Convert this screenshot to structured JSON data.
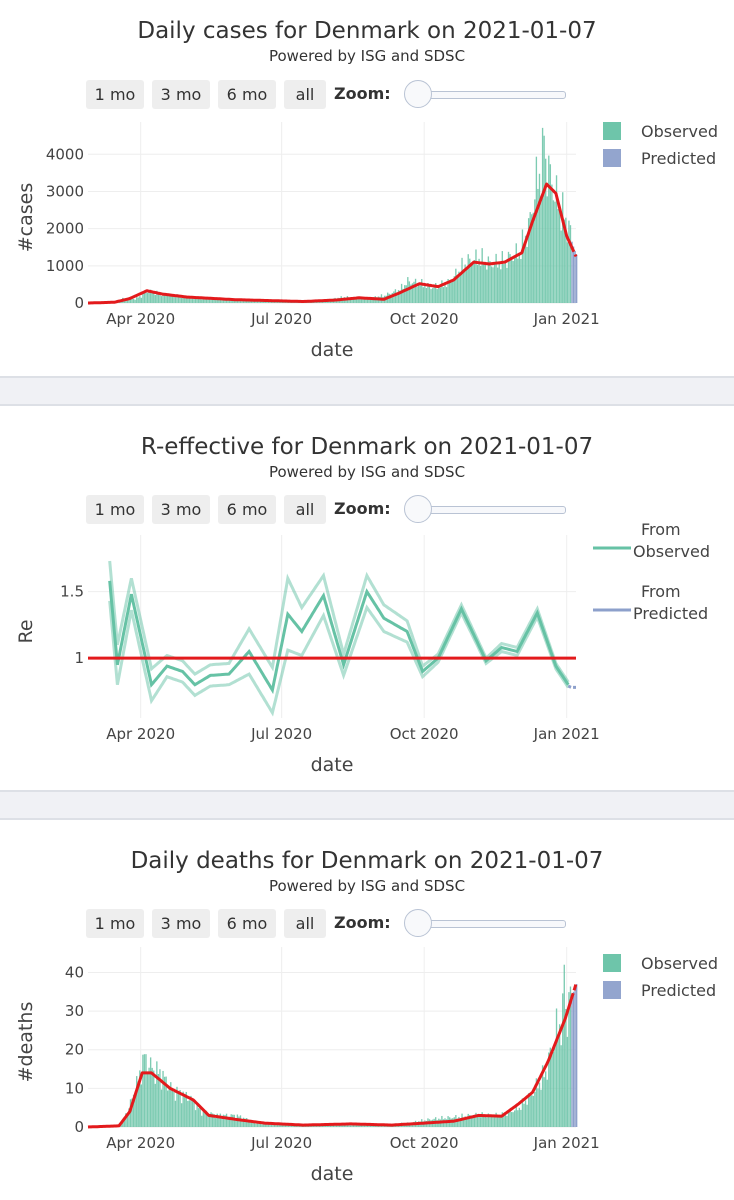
{
  "charts": [
    {
      "title": "Daily cases for Denmark on 2021-01-07",
      "subtitle": "Powered by ISG and SDSC",
      "buttons": [
        "1 mo",
        "3 mo",
        "6 mo",
        "all"
      ],
      "zoom_label": "Zoom:",
      "xlabel": "date",
      "ylabel": "#cases",
      "legend": [
        "Observed",
        "Predicted"
      ]
    },
    {
      "title": "R-effective for Denmark on 2021-01-07",
      "subtitle": "Powered by ISG and SDSC",
      "buttons": [
        "1 mo",
        "3 mo",
        "6 mo",
        "all"
      ],
      "zoom_label": "Zoom:",
      "xlabel": "date",
      "ylabel": "Re",
      "legend": [
        "From Observed",
        "From Predicted"
      ]
    },
    {
      "title": "Daily deaths for Denmark on 2021-01-07",
      "subtitle": "Powered by ISG and SDSC",
      "buttons": [
        "1 mo",
        "3 mo",
        "6 mo",
        "all"
      ],
      "zoom_label": "Zoom:",
      "xlabel": "date",
      "ylabel": "#deaths",
      "legend": [
        "Observed",
        "Predicted"
      ]
    }
  ],
  "colors": {
    "observed": "#66c2a5",
    "predicted": "#8da0cb",
    "trend": "#e31a1c",
    "reference": "#e31a1c"
  },
  "chart_data": [
    {
      "type": "bar",
      "title": "Daily cases for Denmark on 2021-01-07",
      "xlabel": "date",
      "ylabel": "#cases",
      "x_ticks": [
        "Apr 2020",
        "Jul 2020",
        "Oct 2020",
        "Jan 2021"
      ],
      "x_tick_dates": [
        "2020-04-01",
        "2020-07-01",
        "2020-10-01",
        "2021-01-01"
      ],
      "y_ticks": [
        0,
        1000,
        2000,
        3000,
        4000
      ],
      "xlim": [
        "2020-02-27",
        "2021-01-07"
      ],
      "ylim": [
        0,
        4600
      ],
      "legend": [
        "Observed",
        "Predicted"
      ],
      "legend_position": "top-right",
      "observed_knots": [
        [
          "2020-02-27",
          0
        ],
        [
          "2020-03-10",
          10
        ],
        [
          "2020-03-15",
          40
        ],
        [
          "2020-03-20",
          120
        ],
        [
          "2020-03-28",
          110
        ],
        [
          "2020-04-01",
          190
        ],
        [
          "2020-04-05",
          330
        ],
        [
          "2020-04-10",
          280
        ],
        [
          "2020-04-20",
          220
        ],
        [
          "2020-05-01",
          170
        ],
        [
          "2020-05-20",
          100
        ],
        [
          "2020-06-10",
          60
        ],
        [
          "2020-07-01",
          40
        ],
        [
          "2020-07-15",
          30
        ],
        [
          "2020-08-01",
          100
        ],
        [
          "2020-08-10",
          160
        ],
        [
          "2020-08-25",
          120
        ],
        [
          "2020-09-05",
          200
        ],
        [
          "2020-09-15",
          360
        ],
        [
          "2020-09-20",
          580
        ],
        [
          "2020-09-28",
          520
        ],
        [
          "2020-10-05",
          420
        ],
        [
          "2020-10-15",
          500
        ],
        [
          "2020-10-22",
          800
        ],
        [
          "2020-10-28",
          1100
        ],
        [
          "2020-11-05",
          1200
        ],
        [
          "2020-11-12",
          1050
        ],
        [
          "2020-11-20",
          1100
        ],
        [
          "2020-12-01",
          1350
        ],
        [
          "2020-12-07",
          2000
        ],
        [
          "2020-12-12",
          3200
        ],
        [
          "2020-12-17",
          3900
        ],
        [
          "2020-12-21",
          3400
        ],
        [
          "2020-12-25",
          2800
        ],
        [
          "2020-12-31",
          2200
        ],
        [
          "2021-01-03",
          1900
        ]
      ],
      "observed_peak": [
        "2020-12-17",
        4500
      ],
      "predicted": {
        "start": "2021-01-04",
        "end": "2021-01-07",
        "values": [
          1650,
          1520,
          1400,
          1300
        ]
      },
      "trend": [
        [
          "2020-02-27",
          0
        ],
        [
          "2020-03-15",
          20
        ],
        [
          "2020-03-25",
          120
        ],
        [
          "2020-04-05",
          330
        ],
        [
          "2020-04-15",
          240
        ],
        [
          "2020-05-01",
          160
        ],
        [
          "2020-06-01",
          90
        ],
        [
          "2020-07-15",
          40
        ],
        [
          "2020-08-05",
          80
        ],
        [
          "2020-08-20",
          140
        ],
        [
          "2020-09-05",
          100
        ],
        [
          "2020-09-15",
          270
        ],
        [
          "2020-09-28",
          520
        ],
        [
          "2020-10-10",
          440
        ],
        [
          "2020-10-20",
          620
        ],
        [
          "2020-11-02",
          1100
        ],
        [
          "2020-11-12",
          1050
        ],
        [
          "2020-11-22",
          1100
        ],
        [
          "2020-12-03",
          1350
        ],
        [
          "2020-12-10",
          2200
        ],
        [
          "2020-12-19",
          3200
        ],
        [
          "2020-12-25",
          2950
        ],
        [
          "2021-01-01",
          1800
        ],
        [
          "2021-01-07",
          1250
        ]
      ],
      "trend_predicted_from": "2021-01-04"
    },
    {
      "type": "line",
      "title": "R-effective for Denmark on 2021-01-07",
      "xlabel": "date",
      "ylabel": "Re",
      "x_ticks": [
        "Apr 2020",
        "Jul 2020",
        "Oct 2020",
        "Jan 2021"
      ],
      "x_tick_dates": [
        "2020-04-01",
        "2020-07-01",
        "2020-10-01",
        "2021-01-01"
      ],
      "y_ticks": [
        1,
        1.5
      ],
      "xlim": [
        "2020-02-27",
        "2021-01-07"
      ],
      "ylim": [
        0.55,
        1.85
      ],
      "reference_line": 1,
      "legend": [
        "From Observed",
        "From Predicted"
      ],
      "legend_position": "top-right",
      "series_from_observed": [
        [
          "2020-03-12",
          1.58
        ],
        [
          "2020-03-17",
          0.95
        ],
        [
          "2020-03-26",
          1.48
        ],
        [
          "2020-04-08",
          0.8
        ],
        [
          "2020-04-18",
          0.94
        ],
        [
          "2020-04-28",
          0.9
        ],
        [
          "2020-05-06",
          0.8
        ],
        [
          "2020-05-16",
          0.87
        ],
        [
          "2020-05-28",
          0.88
        ],
        [
          "2020-06-10",
          1.05
        ],
        [
          "2020-06-25",
          0.76
        ],
        [
          "2020-07-05",
          1.33
        ],
        [
          "2020-07-14",
          1.2
        ],
        [
          "2020-07-28",
          1.47
        ],
        [
          "2020-08-10",
          0.95
        ],
        [
          "2020-08-25",
          1.5
        ],
        [
          "2020-09-05",
          1.3
        ],
        [
          "2020-09-20",
          1.2
        ],
        [
          "2020-09-30",
          0.9
        ],
        [
          "2020-10-10",
          1.0
        ],
        [
          "2020-10-25",
          1.37
        ],
        [
          "2020-11-10",
          0.98
        ],
        [
          "2020-11-20",
          1.08
        ],
        [
          "2020-11-30",
          1.05
        ],
        [
          "2020-12-13",
          1.34
        ],
        [
          "2020-12-25",
          0.94
        ],
        [
          "2021-01-02",
          0.8
        ]
      ],
      "band_width": [
        0.15,
        0.15,
        0.12,
        0.12,
        0.08,
        0.08,
        0.08,
        0.08,
        0.08,
        0.17,
        0.17,
        0.27,
        0.18,
        0.15,
        0.08,
        0.12,
        0.1,
        0.08,
        0.04,
        0.03,
        0.03,
        0.02,
        0.03,
        0.03,
        0.03,
        0.02,
        0.02
      ],
      "series_from_predicted": [
        [
          "2021-01-02",
          0.79
        ],
        [
          "2021-01-04",
          0.78
        ],
        [
          "2021-01-07",
          0.78
        ]
      ]
    },
    {
      "type": "bar",
      "title": "Daily deaths for Denmark on 2021-01-07",
      "xlabel": "date",
      "ylabel": "#deaths",
      "x_ticks": [
        "Apr 2020",
        "Jul 2020",
        "Oct 2020",
        "Jan 2021"
      ],
      "x_tick_dates": [
        "2020-04-01",
        "2020-07-01",
        "2020-10-01",
        "2021-01-01"
      ],
      "y_ticks": [
        0,
        10,
        20,
        30,
        40
      ],
      "xlim": [
        "2020-02-27",
        "2021-01-07"
      ],
      "ylim": [
        0,
        44
      ],
      "legend": [
        "Observed",
        "Predicted"
      ],
      "legend_position": "top-right",
      "observed_knots": [
        [
          "2020-02-27",
          0
        ],
        [
          "2020-03-18",
          0
        ],
        [
          "2020-03-24",
          5
        ],
        [
          "2020-03-30",
          12
        ],
        [
          "2020-04-03",
          18
        ],
        [
          "2020-04-08",
          15
        ],
        [
          "2020-04-15",
          13
        ],
        [
          "2020-04-22",
          9
        ],
        [
          "2020-05-01",
          8
        ],
        [
          "2020-05-10",
          4
        ],
        [
          "2020-05-20",
          3
        ],
        [
          "2020-06-01",
          3
        ],
        [
          "2020-06-15",
          1
        ],
        [
          "2020-07-01",
          0.5
        ],
        [
          "2020-08-01",
          0.5
        ],
        [
          "2020-09-01",
          0.5
        ],
        [
          "2020-09-20",
          1
        ],
        [
          "2020-10-05",
          2
        ],
        [
          "2020-10-20",
          2.5
        ],
        [
          "2020-11-01",
          3
        ],
        [
          "2020-11-20",
          3
        ],
        [
          "2020-12-01",
          5
        ],
        [
          "2020-12-10",
          9
        ],
        [
          "2020-12-18",
          14
        ],
        [
          "2020-12-25",
          25
        ],
        [
          "2021-01-01",
          30
        ],
        [
          "2021-01-03",
          33
        ]
      ],
      "observed_peak": [
        "2020-12-30",
        42
      ],
      "predicted": {
        "start": "2021-01-04",
        "end": "2021-01-07",
        "values": [
          34,
          35,
          36,
          37
        ]
      },
      "trend": [
        [
          "2020-02-27",
          0
        ],
        [
          "2020-03-18",
          0.3
        ],
        [
          "2020-03-25",
          4
        ],
        [
          "2020-04-02",
          14
        ],
        [
          "2020-04-08",
          14
        ],
        [
          "2020-04-20",
          10
        ],
        [
          "2020-05-05",
          7
        ],
        [
          "2020-05-15",
          3
        ],
        [
          "2020-06-01",
          2
        ],
        [
          "2020-06-20",
          1
        ],
        [
          "2020-07-15",
          0.5
        ],
        [
          "2020-08-15",
          0.8
        ],
        [
          "2020-09-10",
          0.5
        ],
        [
          "2020-10-01",
          1
        ],
        [
          "2020-10-20",
          1.5
        ],
        [
          "2020-11-05",
          3
        ],
        [
          "2020-11-20",
          2.8
        ],
        [
          "2020-12-01",
          6
        ],
        [
          "2020-12-10",
          9
        ],
        [
          "2020-12-20",
          17
        ],
        [
          "2020-12-31",
          28
        ],
        [
          "2021-01-07",
          37
        ]
      ],
      "trend_predicted_from": "2021-01-04"
    }
  ]
}
